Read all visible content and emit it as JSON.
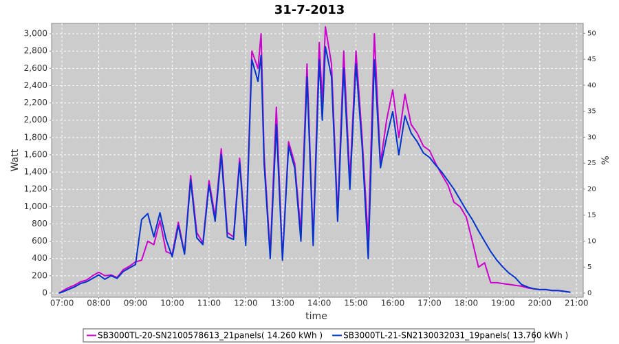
{
  "chart_data": {
    "type": "line",
    "title": "31-7-2013",
    "x_label": "time",
    "y_label": "Watt",
    "y2_label": "%",
    "x": [
      "06:55",
      "07:00",
      "07:10",
      "07:20",
      "07:30",
      "07:40",
      "07:50",
      "08:00",
      "08:10",
      "08:20",
      "08:30",
      "08:40",
      "08:50",
      "09:00",
      "09:10",
      "09:20",
      "09:30",
      "09:40",
      "09:50",
      "10:00",
      "10:10",
      "10:20",
      "10:30",
      "10:40",
      "10:50",
      "11:00",
      "11:10",
      "11:20",
      "11:30",
      "11:40",
      "11:50",
      "12:00",
      "12:10",
      "12:20",
      "12:25",
      "12:30",
      "12:40",
      "12:50",
      "13:00",
      "13:10",
      "13:20",
      "13:30",
      "13:40",
      "13:50",
      "14:00",
      "14:05",
      "14:10",
      "14:20",
      "14:30",
      "14:40",
      "14:50",
      "15:00",
      "15:10",
      "15:20",
      "15:30",
      "15:40",
      "15:50",
      "16:00",
      "16:10",
      "16:20",
      "16:30",
      "16:40",
      "16:50",
      "17:00",
      "17:10",
      "17:20",
      "17:30",
      "17:40",
      "17:50",
      "18:00",
      "18:10",
      "18:20",
      "18:30",
      "18:40",
      "18:50",
      "19:00",
      "19:10",
      "19:20",
      "19:30",
      "19:40",
      "19:50",
      "20:00",
      "20:10",
      "20:20",
      "20:30",
      "20:40",
      "20:50"
    ],
    "series": [
      {
        "name": "SB3000TL-20-SN2100578613_21panels( 14.260 kWh )",
        "color": "#cc00cc",
        "values": [
          0,
          20,
          60,
          90,
          130,
          150,
          200,
          240,
          200,
          210,
          180,
          270,
          310,
          360,
          380,
          600,
          560,
          840,
          480,
          450,
          820,
          460,
          1360,
          700,
          580,
          1300,
          880,
          1670,
          700,
          650,
          1560,
          600,
          2800,
          2600,
          3000,
          1600,
          450,
          2150,
          400,
          1750,
          1500,
          700,
          2650,
          600,
          2900,
          2200,
          3080,
          2650,
          900,
          2800,
          1300,
          2800,
          1800,
          600,
          3000,
          1500,
          2000,
          2350,
          1800,
          2300,
          1950,
          1850,
          1700,
          1650,
          1500,
          1370,
          1250,
          1050,
          1000,
          880,
          600,
          300,
          350,
          120,
          120,
          110,
          100,
          90,
          80,
          60,
          50,
          40,
          40,
          30,
          30,
          20,
          10
        ]
      },
      {
        "name": "SB3000TL-21-SN2130032031_19panels( 13.760 kWh )",
        "color": "#0033cc",
        "values": [
          0,
          10,
          40,
          70,
          110,
          130,
          170,
          210,
          160,
          200,
          170,
          250,
          290,
          330,
          850,
          920,
          650,
          930,
          620,
          420,
          780,
          450,
          1310,
          640,
          560,
          1250,
          830,
          1600,
          650,
          620,
          1510,
          550,
          2700,
          2450,
          2750,
          1500,
          400,
          1950,
          380,
          1700,
          1450,
          600,
          2500,
          550,
          2700,
          2000,
          2850,
          2500,
          830,
          2600,
          1200,
          2650,
          1700,
          400,
          2700,
          1450,
          1800,
          2100,
          1600,
          2050,
          1850,
          1750,
          1620,
          1570,
          1480,
          1400,
          1300,
          1200,
          1080,
          960,
          850,
          720,
          600,
          480,
          380,
          300,
          230,
          180,
          100,
          70,
          50,
          40,
          40,
          30,
          30,
          20,
          10
        ]
      }
    ],
    "xlim": [
      "06:43",
      "21:11"
    ],
    "xticks": [
      "07:00",
      "08:00",
      "09:00",
      "10:00",
      "11:00",
      "12:00",
      "13:00",
      "14:00",
      "15:00",
      "16:00",
      "17:00",
      "18:00",
      "19:00",
      "20:00",
      "21:00"
    ],
    "ylim": [
      -48,
      3120
    ],
    "yticks": [
      0,
      200,
      400,
      600,
      800,
      {
        "value": 1000,
        "label": "1,000"
      },
      {
        "value": 1200,
        "label": "1,200"
      },
      {
        "value": 1400,
        "label": "1,400"
      },
      {
        "value": 1600,
        "label": "1,600"
      },
      {
        "value": 1800,
        "label": "1,800"
      },
      {
        "value": 2000,
        "label": "2,000"
      },
      {
        "value": 2200,
        "label": "2,200"
      },
      {
        "value": 2400,
        "label": "2,400"
      },
      {
        "value": 2600,
        "label": "2,600"
      },
      {
        "value": 2800,
        "label": "2,800"
      },
      {
        "value": 3000,
        "label": "3,000"
      }
    ],
    "y2lim": [
      -0.8,
      51.9
    ],
    "y2ticks": [
      0,
      5,
      10,
      15,
      20,
      25,
      30,
      35,
      40,
      45,
      50
    ],
    "grid": true,
    "legend": "bottom"
  }
}
